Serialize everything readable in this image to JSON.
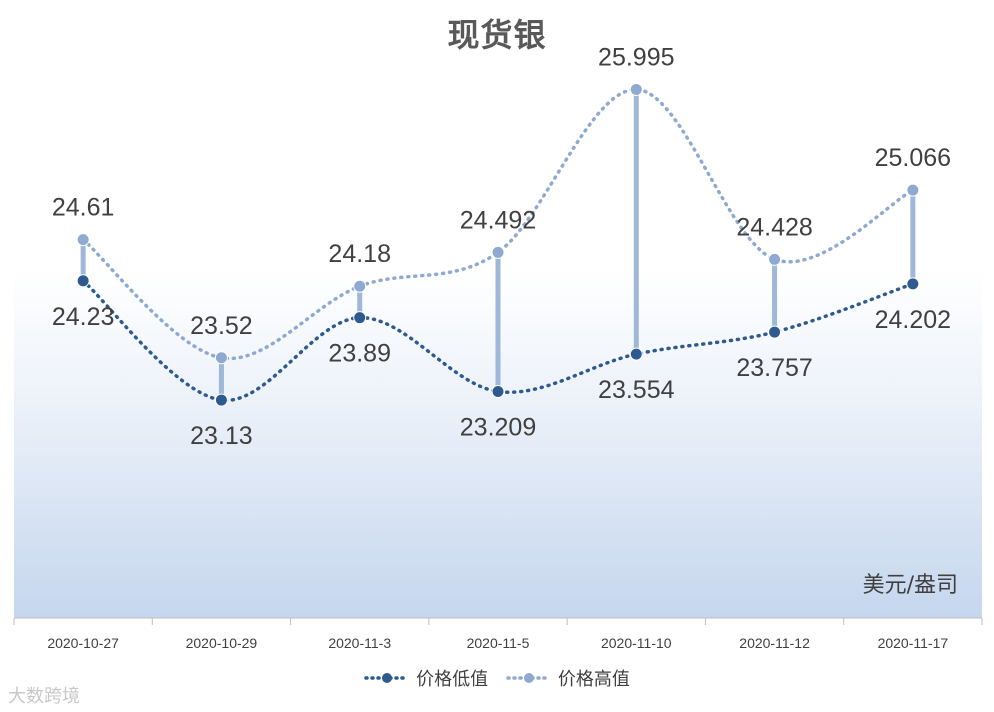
{
  "chart_data": {
    "type": "line",
    "title": "现货银",
    "unit_label": "美元/盎司",
    "categories": [
      "2020-10-27",
      "2020-10-29",
      "2020-11-3",
      "2020-11-5",
      "2020-11-10",
      "2020-11-12",
      "2020-11-17"
    ],
    "series": [
      {
        "name": "价格低值",
        "values": [
          24.23,
          23.13,
          23.89,
          23.209,
          23.554,
          23.757,
          24.202
        ],
        "color": "#2e5a8f"
      },
      {
        "name": "价格高值",
        "values": [
          24.61,
          23.52,
          24.18,
          24.492,
          25.995,
          24.428,
          25.066
        ],
        "color": "#8faad0"
      }
    ],
    "labels_low": [
      "24.23",
      "23.13",
      "23.89",
      "23.209",
      "23.554",
      "23.757",
      "24.202"
    ],
    "labels_high": [
      "24.61",
      "23.52",
      "24.18",
      "24.492",
      "25.995",
      "24.428",
      "25.066"
    ],
    "ylim": [
      21.12,
      26.82
    ],
    "grid": false,
    "legend_position": "bottom",
    "high_low_lines": true
  },
  "watermark": "大数跨境"
}
